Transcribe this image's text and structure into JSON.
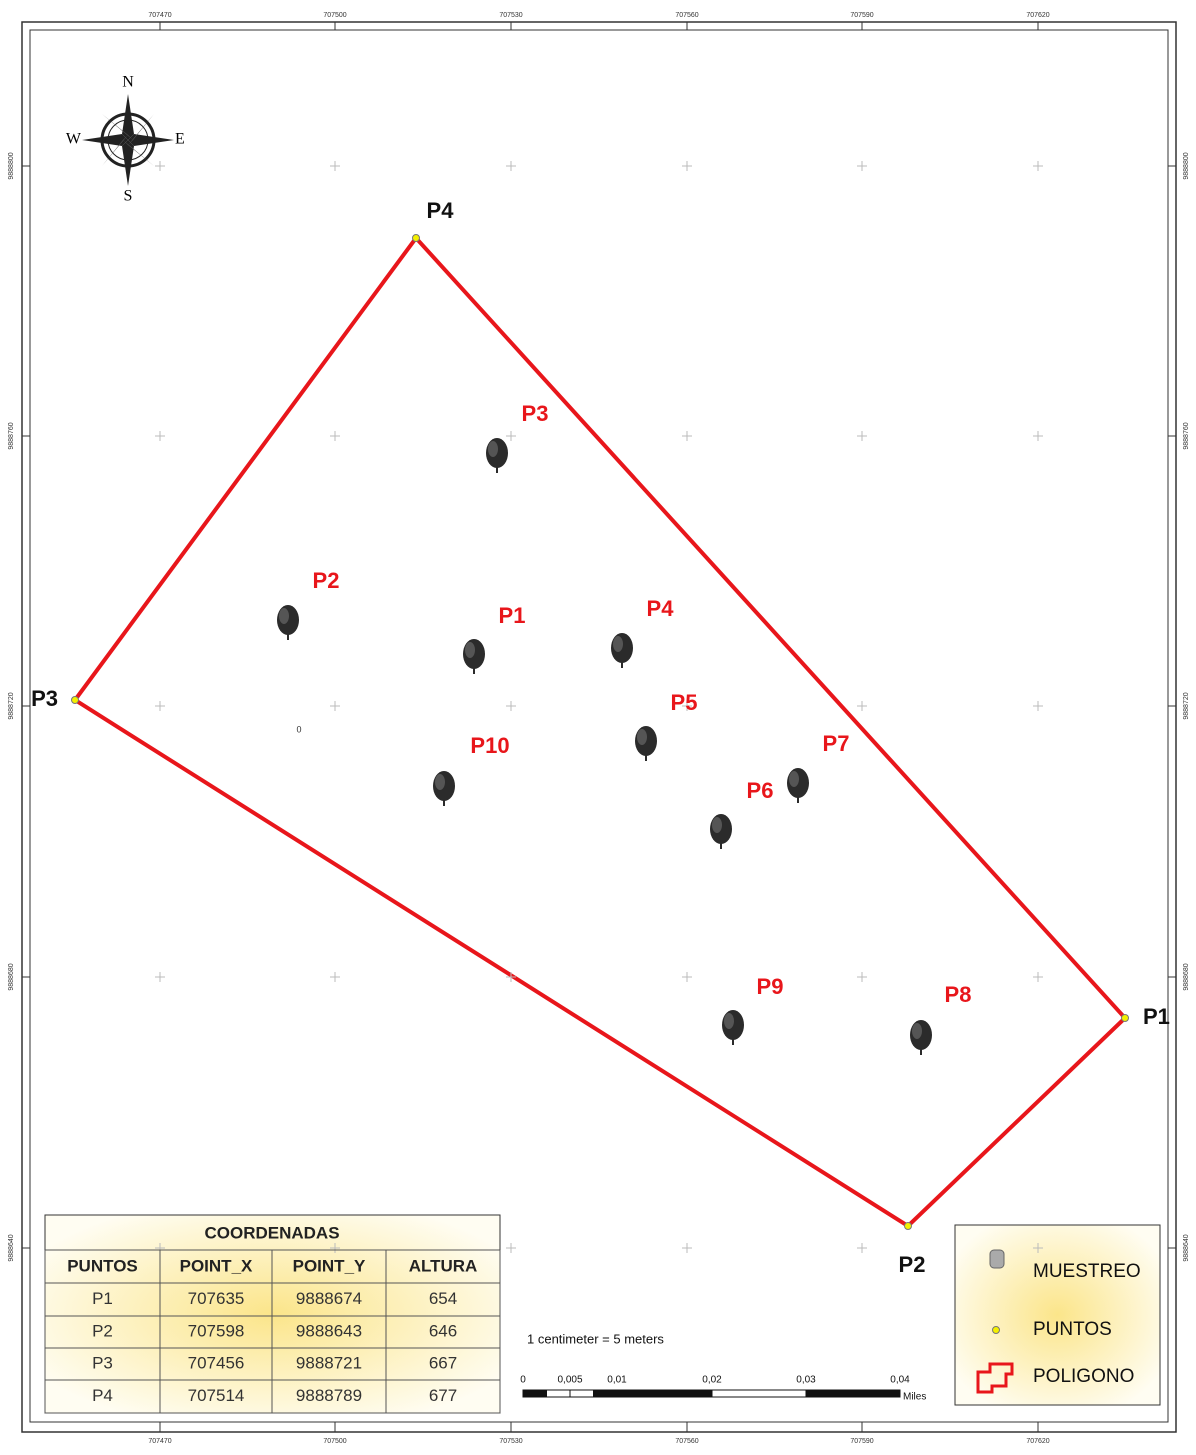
{
  "compass": {
    "n": "N",
    "s": "S",
    "e": "E",
    "w": "W"
  },
  "grid": {
    "x_labels": [
      "707470",
      "707500",
      "707530",
      "707560",
      "707590",
      "707620"
    ],
    "y_labels": [
      "9888800",
      "9888760",
      "9888720",
      "9888680",
      "9888640"
    ]
  },
  "vertices": [
    "P1",
    "P2",
    "P3",
    "P4"
  ],
  "samples": [
    "P1",
    "P2",
    "P3",
    "P4",
    "P5",
    "P6",
    "P7",
    "P8",
    "P9",
    "P10"
  ],
  "stray_label": "0",
  "table": {
    "title": "COORDENADAS",
    "header": [
      "PUNTOS",
      "POINT_X",
      "POINT_Y",
      "ALTURA"
    ],
    "rows": [
      [
        "P1",
        "707635",
        "9888674",
        "654"
      ],
      [
        "P2",
        "707598",
        "9888643",
        "646"
      ],
      [
        "P3",
        "707456",
        "9888721",
        "667"
      ],
      [
        "P4",
        "707514",
        "9888789",
        "677"
      ]
    ]
  },
  "scale": {
    "caption": "1 centimeter = 5 meters",
    "ticks": [
      "0",
      "0,005",
      "0,01",
      "0,02",
      "0,03",
      "0,04"
    ],
    "unit": "Miles"
  },
  "legend": {
    "items": [
      "MUESTREO",
      "PUNTOS",
      "POLIGONO"
    ]
  }
}
